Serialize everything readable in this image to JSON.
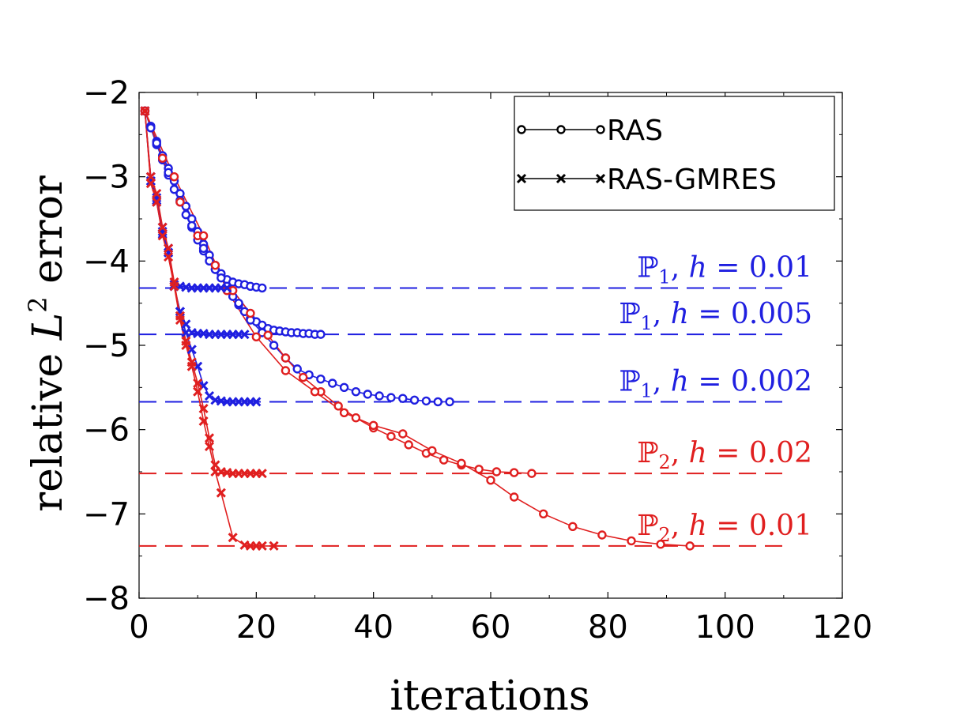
{
  "chart_data": {
    "type": "line",
    "title": "",
    "xlabel": "iterations",
    "ylabel": "relative L² error",
    "ylabel_parts": {
      "pre": "relative ",
      "var": "L",
      "sup": "2",
      "post": " error"
    },
    "xlim": [
      0,
      120
    ],
    "ylim": [
      -8,
      -2
    ],
    "xticks": [
      0,
      20,
      40,
      60,
      80,
      100,
      120
    ],
    "yticks": [
      -2,
      -3,
      -4,
      -5,
      -6,
      -7,
      -8
    ],
    "grid": false,
    "legend": {
      "position": "top-right",
      "entries": [
        {
          "label": "RAS",
          "marker": "circle"
        },
        {
          "label": "RAS-GMRES",
          "marker": "x"
        }
      ]
    },
    "colors": {
      "P1": "#1f1fe0",
      "P2": "#e01f1f",
      "legend": "#000000"
    },
    "reference_lines": [
      {
        "space": "ℙ",
        "sub": "1",
        "h": "0.01",
        "label": "ℙ1, h = 0.01",
        "y": -4.32,
        "color": "#1f1fe0"
      },
      {
        "space": "ℙ",
        "sub": "1",
        "h": "0.005",
        "label": "ℙ1, h = 0.005",
        "y": -4.87,
        "color": "#1f1fe0"
      },
      {
        "space": "ℙ",
        "sub": "1",
        "h": "0.002",
        "label": "ℙ1, h = 0.002",
        "y": -5.67,
        "color": "#1f1fe0"
      },
      {
        "space": "ℙ",
        "sub": "2",
        "h": "0.02",
        "label": "ℙ2, h = 0.02",
        "y": -6.52,
        "color": "#e01f1f"
      },
      {
        "space": "ℙ",
        "sub": "2",
        "h": "0.01",
        "label": "ℙ2, h = 0.01",
        "y": -7.38,
        "color": "#e01f1f"
      }
    ],
    "reference_x_range": [
      0,
      110
    ],
    "series": [
      {
        "name": "RAS ℙ1 h=0.01",
        "method": "RAS",
        "marker": "circle",
        "color": "#1f1fe0",
        "x": [
          1,
          2,
          3,
          4,
          5,
          6,
          7,
          8,
          9,
          10,
          11,
          12,
          13,
          14,
          15,
          16,
          17,
          18,
          19,
          20,
          21
        ],
        "y": [
          -2.22,
          -2.4,
          -2.58,
          -2.75,
          -2.9,
          -3.05,
          -3.2,
          -3.35,
          -3.5,
          -3.65,
          -3.8,
          -3.93,
          -4.05,
          -4.15,
          -4.22,
          -4.25,
          -4.27,
          -4.28,
          -4.3,
          -4.31,
          -4.32
        ]
      },
      {
        "name": "RAS ℙ1 h=0.005",
        "method": "RAS",
        "marker": "circle",
        "color": "#1f1fe0",
        "x": [
          1,
          2,
          3,
          4,
          5,
          6,
          7,
          8,
          9,
          10,
          11,
          12,
          13,
          14,
          15,
          16,
          17,
          18,
          19,
          20,
          21,
          22,
          23,
          24,
          25,
          26,
          27,
          28,
          29,
          30,
          31
        ],
        "y": [
          -2.22,
          -2.42,
          -2.62,
          -2.8,
          -2.98,
          -3.15,
          -3.3,
          -3.45,
          -3.6,
          -3.75,
          -3.88,
          -4.0,
          -4.1,
          -4.2,
          -4.3,
          -4.42,
          -4.52,
          -4.6,
          -4.68,
          -4.72,
          -4.76,
          -4.8,
          -4.82,
          -4.83,
          -4.84,
          -4.85,
          -4.85,
          -4.86,
          -4.86,
          -4.87,
          -4.87
        ]
      },
      {
        "name": "RAS ℙ1 h=0.002",
        "method": "RAS",
        "marker": "circle",
        "color": "#1f1fe0",
        "x": [
          1,
          3,
          5,
          7,
          9,
          11,
          13,
          15,
          17,
          19,
          21,
          23,
          25,
          27,
          29,
          31,
          33,
          35,
          37,
          39,
          41,
          43,
          45,
          47,
          49,
          51,
          53
        ],
        "y": [
          -2.22,
          -2.6,
          -2.95,
          -3.28,
          -3.58,
          -3.85,
          -4.1,
          -4.3,
          -4.5,
          -4.7,
          -4.85,
          -5.0,
          -5.15,
          -5.28,
          -5.35,
          -5.4,
          -5.45,
          -5.5,
          -5.55,
          -5.58,
          -5.6,
          -5.62,
          -5.63,
          -5.65,
          -5.66,
          -5.67,
          -5.67
        ]
      },
      {
        "name": "RAS ℙ2 h=0.02",
        "method": "RAS",
        "marker": "circle",
        "color": "#e01f1f",
        "x": [
          1,
          4,
          7,
          10,
          13,
          16,
          19,
          22,
          25,
          28,
          31,
          34,
          37,
          40,
          43,
          46,
          49,
          52,
          55,
          58,
          61,
          64,
          67
        ],
        "y": [
          -2.22,
          -2.78,
          -3.3,
          -3.7,
          -4.05,
          -4.35,
          -4.62,
          -4.88,
          -5.15,
          -5.38,
          -5.55,
          -5.72,
          -5.86,
          -5.98,
          -6.08,
          -6.18,
          -6.28,
          -6.36,
          -6.42,
          -6.47,
          -6.5,
          -6.51,
          -6.52
        ]
      },
      {
        "name": "RAS ℙ2 h=0.01",
        "method": "RAS",
        "marker": "circle",
        "color": "#e01f1f",
        "x": [
          1,
          6,
          11,
          15,
          20,
          25,
          30,
          35,
          40,
          45,
          50,
          55,
          60,
          64,
          69,
          74,
          79,
          84,
          89,
          94
        ],
        "y": [
          -2.22,
          -3.0,
          -3.7,
          -4.35,
          -4.9,
          -5.3,
          -5.55,
          -5.8,
          -5.95,
          -6.05,
          -6.25,
          -6.4,
          -6.6,
          -6.8,
          -7.0,
          -7.15,
          -7.25,
          -7.32,
          -7.36,
          -7.38
        ]
      },
      {
        "name": "RAS-GMRES ℙ1 h=0.01",
        "method": "RAS-GMRES",
        "marker": "x",
        "color": "#1f1fe0",
        "x": [
          1,
          2,
          3,
          4,
          5,
          6,
          7,
          8,
          9,
          10,
          11,
          12,
          13,
          14,
          15
        ],
        "y": [
          -2.22,
          -3.0,
          -3.25,
          -3.6,
          -3.85,
          -4.28,
          -4.3,
          -4.31,
          -4.32,
          -4.32,
          -4.32,
          -4.32,
          -4.32,
          -4.32,
          -4.32
        ]
      },
      {
        "name": "RAS-GMRES ℙ1 h=0.005",
        "method": "RAS-GMRES",
        "marker": "x",
        "color": "#1f1fe0",
        "x": [
          1,
          2,
          3,
          4,
          5,
          6,
          7,
          8,
          9,
          10,
          11,
          12,
          13,
          14,
          15,
          16,
          17,
          18
        ],
        "y": [
          -2.22,
          -3.05,
          -3.28,
          -3.65,
          -3.9,
          -4.3,
          -4.6,
          -4.75,
          -4.85,
          -4.86,
          -4.86,
          -4.87,
          -4.87,
          -4.87,
          -4.87,
          -4.87,
          -4.87,
          -4.87
        ]
      },
      {
        "name": "RAS-GMRES ℙ1 h=0.002",
        "method": "RAS-GMRES",
        "marker": "x",
        "color": "#1f1fe0",
        "x": [
          1,
          2,
          3,
          4,
          5,
          6,
          7,
          8,
          9,
          10,
          11,
          12,
          13,
          14,
          15,
          16,
          17,
          18,
          19,
          20
        ],
        "y": [
          -2.22,
          -3.05,
          -3.3,
          -3.68,
          -3.9,
          -4.3,
          -4.6,
          -4.85,
          -5.05,
          -5.25,
          -5.48,
          -5.6,
          -5.65,
          -5.66,
          -5.67,
          -5.67,
          -5.67,
          -5.67,
          -5.67,
          -5.67
        ]
      },
      {
        "name": "RAS-GMRES ℙ2 h=0.02",
        "method": "RAS-GMRES",
        "marker": "x",
        "color": "#e01f1f",
        "x": [
          1,
          2,
          3,
          4,
          5,
          6,
          7,
          8,
          9,
          10,
          11,
          12,
          13,
          14,
          15,
          16,
          17,
          18,
          19,
          20,
          21
        ],
        "y": [
          -2.22,
          -3.0,
          -3.2,
          -3.6,
          -3.85,
          -4.25,
          -4.65,
          -4.95,
          -5.2,
          -5.45,
          -5.75,
          -6.1,
          -6.42,
          -6.5,
          -6.51,
          -6.52,
          -6.52,
          -6.52,
          -6.52,
          -6.52,
          -6.52
        ]
      },
      {
        "name": "RAS-GMRES ℙ2 h=0.01",
        "method": "RAS-GMRES",
        "marker": "x",
        "color": "#e01f1f",
        "x": [
          1,
          2,
          3,
          4,
          5,
          6,
          7,
          8,
          9,
          10,
          11,
          12,
          13,
          14,
          16,
          18,
          19,
          20,
          21,
          23
        ],
        "y": [
          -2.22,
          -3.08,
          -3.3,
          -3.7,
          -3.95,
          -4.3,
          -4.7,
          -5.0,
          -5.25,
          -5.55,
          -5.9,
          -6.2,
          -6.5,
          -6.75,
          -7.28,
          -7.37,
          -7.38,
          -7.38,
          -7.38,
          -7.38
        ]
      }
    ]
  }
}
